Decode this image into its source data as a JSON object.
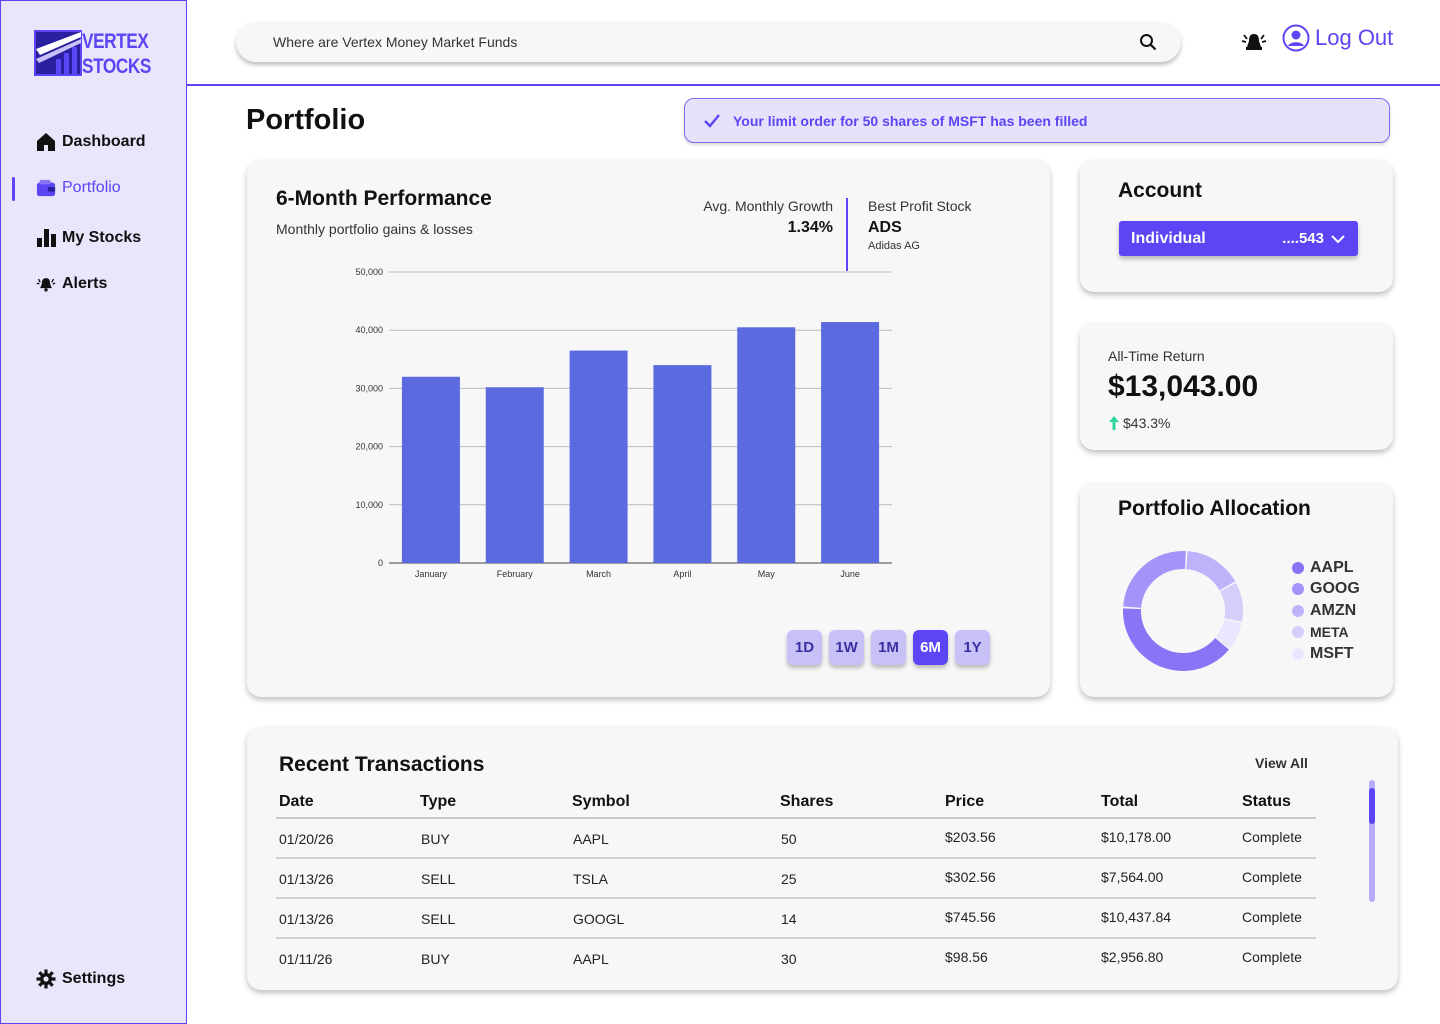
{
  "app": {
    "logo_line1": "VERTEX",
    "logo_line2": "STOCKS"
  },
  "sidebar": {
    "items": [
      {
        "label": "Dashboard",
        "icon": "home-icon"
      },
      {
        "label": "Portfolio",
        "icon": "wallet-icon",
        "active": true
      },
      {
        "label": "My Stocks",
        "icon": "bar-chart-icon"
      },
      {
        "label": "Alerts",
        "icon": "bell-icon"
      }
    ],
    "settings_label": "Settings"
  },
  "header": {
    "search_value": "Where are Vertex Money Market Funds",
    "logout_label": "Log Out"
  },
  "page": {
    "title": "Portfolio",
    "toast": "Your limit order for 50 shares of MSFT has been filled"
  },
  "performance": {
    "title": "6-Month Performance",
    "subtitle": "Monthly portfolio gains & losses",
    "avg_label": "Avg. Monthly Growth",
    "avg_value": "1.34%",
    "best_label": "Best Profit Stock",
    "best_symbol": "ADS",
    "best_name": "Adidas AG",
    "ranges": [
      "1D",
      "1W",
      "1M",
      "6M",
      "1Y"
    ],
    "active_range": "6M"
  },
  "chart_data": {
    "type": "bar",
    "categories": [
      "January",
      "February",
      "March",
      "April",
      "May",
      "June"
    ],
    "values": [
      32000,
      30200,
      36500,
      34000,
      40500,
      41400
    ],
    "ylim": [
      0,
      50000
    ],
    "yticks": [
      "0",
      "10,000",
      "20,000",
      "30,000",
      "40,000",
      "50,000"
    ],
    "bar_color": "#5b6bdf",
    "grid": true
  },
  "account": {
    "title": "Account",
    "type": "Individual",
    "number": "....543"
  },
  "returns": {
    "label": "All-Time Return",
    "value": "$13,043.00",
    "change": "$43.3%"
  },
  "allocation": {
    "title": "Portfolio Allocation",
    "items": [
      {
        "label": "AAPL",
        "color": "#8a73f5",
        "share": 0.4
      },
      {
        "label": "GOOG",
        "color": "#a493f8",
        "share": 0.25
      },
      {
        "label": "AMZN",
        "color": "#bfb2fa",
        "share": 0.16
      },
      {
        "label": "META",
        "color": "#d6cdfb",
        "share": 0.11
      },
      {
        "label": "MSFT",
        "color": "#ebe6fd",
        "share": 0.08
      }
    ]
  },
  "transactions": {
    "title": "Recent Transactions",
    "view_all": "View All",
    "columns": [
      "Date",
      "Type",
      "Symbol",
      "Shares",
      "Price",
      "Total",
      "Status"
    ],
    "rows": [
      [
        "01/20/26",
        "BUY",
        "AAPL",
        "50",
        "$203.56",
        "$10,178.00",
        "Complete"
      ],
      [
        "01/13/26",
        "SELL",
        "TSLA",
        "25",
        "$302.56",
        "$7,564.00",
        "Complete"
      ],
      [
        "01/13/26",
        "SELL",
        "GOOGL",
        "14",
        "$745.56",
        "$10,437.84",
        "Complete"
      ],
      [
        "01/11/26",
        "BUY",
        "AAPL",
        "30",
        "$98.56",
        "$2,956.80",
        "Complete"
      ]
    ]
  },
  "colors": {
    "accent": "#5b45f5",
    "sidebar_bg": "#e9e5fb",
    "positive": "#2fd4a0"
  }
}
